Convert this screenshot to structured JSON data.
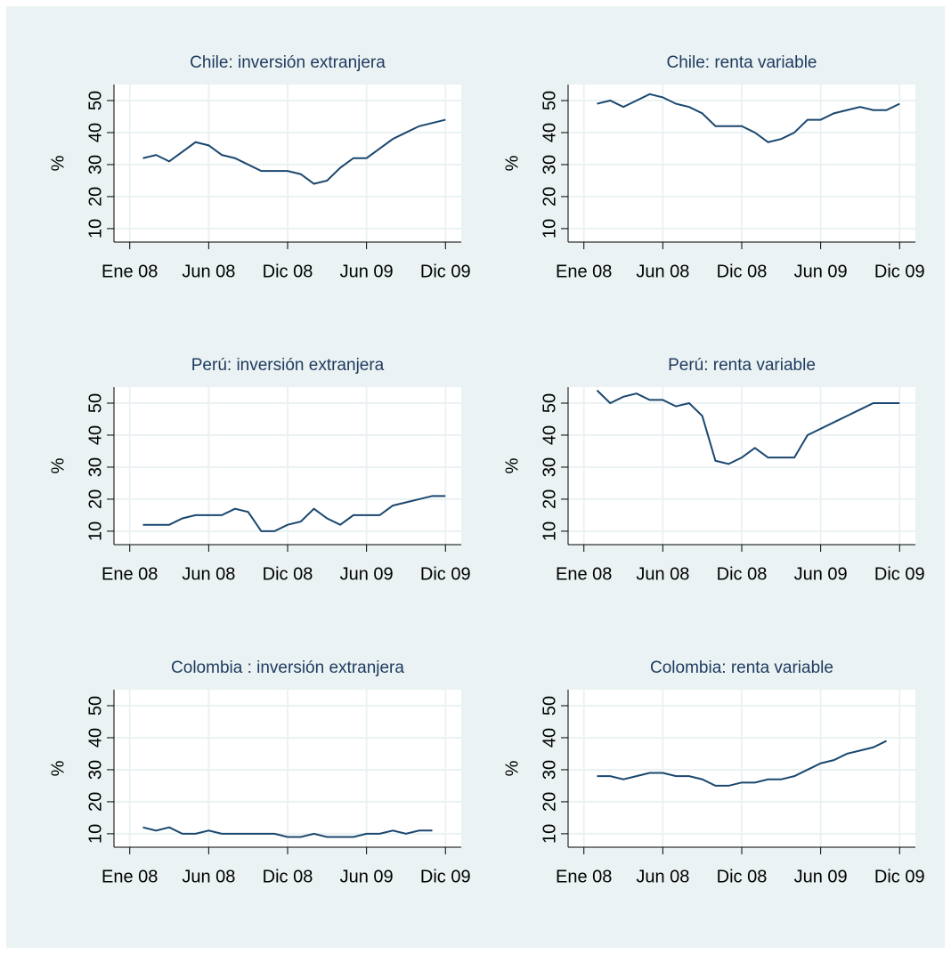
{
  "chart_data": [
    {
      "type": "line",
      "title": "Chile: inversión extranjera",
      "y_label": "%",
      "color": "#1a476f",
      "grid": true,
      "x": [
        1,
        2,
        3,
        4,
        5,
        6,
        7,
        8,
        9,
        10,
        11,
        12,
        13,
        14,
        15,
        16,
        17,
        18,
        19,
        20,
        21,
        22,
        23,
        24
      ],
      "values": [
        32,
        33,
        31,
        34,
        37,
        36,
        33,
        32,
        30,
        28,
        28,
        28,
        27,
        24,
        25,
        29,
        32,
        32,
        35,
        38,
        40,
        42,
        43,
        44
      ],
      "xlim": [
        -1.2,
        25.2
      ],
      "xticks": [
        {
          "value": 0,
          "label": "Ene 08"
        },
        {
          "value": 6,
          "label": "Jun 08"
        },
        {
          "value": 12,
          "label": "Dic 08"
        },
        {
          "value": 18,
          "label": "Jun 09"
        },
        {
          "value": 24,
          "label": "Dic 09"
        }
      ],
      "ylim": [
        5.8,
        55
      ],
      "yticks": [
        10,
        20,
        30,
        40,
        50
      ]
    },
    {
      "type": "line",
      "title": "Chile: renta variable",
      "y_label": "%",
      "color": "#1a476f",
      "grid": true,
      "x": [
        1,
        2,
        3,
        4,
        5,
        6,
        7,
        8,
        9,
        10,
        11,
        12,
        13,
        14,
        15,
        16,
        17,
        18,
        19,
        20,
        21,
        22,
        23,
        24
      ],
      "values": [
        49,
        50,
        48,
        50,
        52,
        51,
        49,
        48,
        46,
        42,
        42,
        42,
        40,
        37,
        38,
        40,
        44,
        44,
        46,
        47,
        48,
        47,
        47,
        49
      ],
      "xlim": [
        -1.2,
        25.2
      ],
      "xticks": [
        {
          "value": 0,
          "label": "Ene 08"
        },
        {
          "value": 6,
          "label": "Jun 08"
        },
        {
          "value": 12,
          "label": "Dic 08"
        },
        {
          "value": 18,
          "label": "Jun 09"
        },
        {
          "value": 24,
          "label": "Dic 09"
        }
      ],
      "ylim": [
        5.8,
        55
      ],
      "yticks": [
        10,
        20,
        30,
        40,
        50
      ]
    },
    {
      "type": "line",
      "title": "Perú: inversión extranjera",
      "y_label": "%",
      "color": "#1a476f",
      "grid": true,
      "x": [
        1,
        2,
        3,
        4,
        5,
        6,
        7,
        8,
        9,
        10,
        11,
        12,
        13,
        14,
        15,
        16,
        17,
        18,
        19,
        20,
        21,
        22,
        23,
        24
      ],
      "values": [
        12,
        12,
        12,
        14,
        15,
        15,
        15,
        17,
        16,
        10,
        10,
        12,
        13,
        17,
        14,
        12,
        15,
        15,
        15,
        18,
        19,
        20,
        21,
        21
      ],
      "xlim": [
        -1.2,
        25.2
      ],
      "xticks": [
        {
          "value": 0,
          "label": "Ene 08"
        },
        {
          "value": 6,
          "label": "Jun 08"
        },
        {
          "value": 12,
          "label": "Dic 08"
        },
        {
          "value": 18,
          "label": "Jun 09"
        },
        {
          "value": 24,
          "label": "Dic 09"
        }
      ],
      "ylim": [
        5.8,
        55
      ],
      "yticks": [
        10,
        20,
        30,
        40,
        50
      ]
    },
    {
      "type": "line",
      "title": "Perú: renta variable",
      "y_label": "%",
      "color": "#1a476f",
      "grid": true,
      "x": [
        1,
        2,
        3,
        4,
        5,
        6,
        7,
        8,
        9,
        10,
        11,
        12,
        13,
        14,
        15,
        16,
        17,
        18,
        19,
        20,
        21,
        22,
        23,
        24
      ],
      "values": [
        54,
        50,
        52,
        53,
        51,
        51,
        49,
        50,
        46,
        32,
        31,
        33,
        36,
        33,
        33,
        33,
        40,
        42,
        44,
        46,
        48,
        50,
        50,
        50
      ],
      "xlim": [
        -1.2,
        25.2
      ],
      "xticks": [
        {
          "value": 0,
          "label": "Ene 08"
        },
        {
          "value": 6,
          "label": "Jun 08"
        },
        {
          "value": 12,
          "label": "Dic 08"
        },
        {
          "value": 18,
          "label": "Jun 09"
        },
        {
          "value": 24,
          "label": "Dic 09"
        }
      ],
      "ylim": [
        5.8,
        55
      ],
      "yticks": [
        10,
        20,
        30,
        40,
        50
      ]
    },
    {
      "type": "line",
      "title": "Colombia : inversión extranjera",
      "y_label": "%",
      "color": "#1a476f",
      "grid": true,
      "x": [
        1,
        2,
        3,
        4,
        5,
        6,
        7,
        8,
        9,
        10,
        11,
        12,
        13,
        14,
        15,
        16,
        17,
        18,
        19,
        20,
        21,
        22,
        23,
        24
      ],
      "values": [
        12,
        11,
        12,
        10,
        10,
        11,
        10,
        10,
        10,
        10,
        10,
        9,
        9,
        10,
        9,
        9,
        9,
        10,
        10,
        11,
        10,
        11,
        11,
        null
      ],
      "xlim": [
        -1.2,
        25.2
      ],
      "xticks": [
        {
          "value": 0,
          "label": "Ene 08"
        },
        {
          "value": 6,
          "label": "Jun 08"
        },
        {
          "value": 12,
          "label": "Dic 08"
        },
        {
          "value": 18,
          "label": "Jun 09"
        },
        {
          "value": 24,
          "label": "Dic 09"
        }
      ],
      "ylim": [
        5.8,
        55
      ],
      "yticks": [
        10,
        20,
        30,
        40,
        50
      ]
    },
    {
      "type": "line",
      "title": "Colombia: renta variable",
      "y_label": "%",
      "color": "#1a476f",
      "grid": true,
      "x": [
        1,
        2,
        3,
        4,
        5,
        6,
        7,
        8,
        9,
        10,
        11,
        12,
        13,
        14,
        15,
        16,
        17,
        18,
        19,
        20,
        21,
        22,
        23,
        24
      ],
      "values": [
        28,
        28,
        27,
        28,
        29,
        29,
        28,
        28,
        27,
        25,
        25,
        26,
        26,
        27,
        27,
        28,
        30,
        32,
        33,
        35,
        36,
        37,
        39,
        null
      ],
      "xlim": [
        -1.2,
        25.2
      ],
      "xticks": [
        {
          "value": 0,
          "label": "Ene 08"
        },
        {
          "value": 6,
          "label": "Jun 08"
        },
        {
          "value": 12,
          "label": "Dic 08"
        },
        {
          "value": 18,
          "label": "Jun 09"
        },
        {
          "value": 24,
          "label": "Dic 09"
        }
      ],
      "ylim": [
        5.8,
        55
      ],
      "yticks": [
        10,
        20,
        30,
        40,
        50
      ]
    }
  ]
}
